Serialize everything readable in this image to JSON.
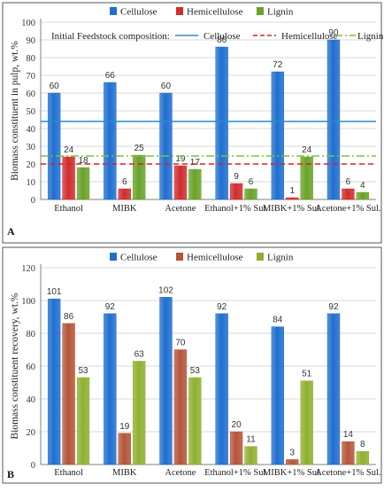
{
  "chart_data": [
    {
      "panel": "A",
      "type": "bar",
      "categories": [
        "Ethanol",
        "MIBK",
        "Acetone",
        "Ethanol+1% Sul.",
        "MIBK+1% Sul.",
        "Acetone+1% Sul."
      ],
      "series": [
        {
          "name": "Cellulose",
          "color": "#1f6fd0",
          "values": [
            60,
            66,
            60,
            86,
            72,
            90
          ]
        },
        {
          "name": "Hemicellulose",
          "color": "#d12d2d",
          "values": [
            24,
            6,
            19,
            9,
            1,
            6
          ]
        },
        {
          "name": "Lignin",
          "color": "#6aa22a",
          "values": [
            18,
            25,
            17,
            6,
            24,
            4
          ]
        }
      ],
      "reference_lines": {
        "title": "Initial Feedstock composition:",
        "lines": [
          {
            "name": "Cellulose",
            "value": 44,
            "color": "#2a8ad0",
            "style": "solid"
          },
          {
            "name": "Hemicellulose",
            "value": 20,
            "color": "#e02020",
            "style": "dashed"
          },
          {
            "name": "Lignin",
            "value": 24.5,
            "color": "#7cc23a",
            "style": "dashdot"
          }
        ]
      },
      "xlabel": "",
      "ylabel": "Biomass constituent in pulp, wt.%",
      "ylim": [
        0,
        100
      ],
      "yticks": [
        0,
        10,
        20,
        30,
        40,
        50,
        60,
        70,
        80,
        90,
        100
      ],
      "legend": "top",
      "grid": true
    },
    {
      "panel": "B",
      "type": "bar",
      "categories": [
        "Ethanol",
        "MIBK",
        "Acetone",
        "Ethanol+1% Sul.",
        "MIBK+1% Sul.",
        "Acetone+1% Sul."
      ],
      "series": [
        {
          "name": "Cellulose",
          "color": "#1f6fd0",
          "values": [
            101,
            92,
            102,
            92,
            84,
            92
          ]
        },
        {
          "name": "Hemicellulose",
          "color": "#b5553a",
          "values": [
            86,
            19,
            70,
            20,
            3,
            14
          ]
        },
        {
          "name": "Lignin",
          "color": "#8fb030",
          "values": [
            53,
            63,
            53,
            11,
            51,
            8
          ]
        }
      ],
      "xlabel": "",
      "ylabel": "Biomass constituent recovery, wt.%",
      "ylim": [
        0,
        120
      ],
      "yticks": [
        0,
        20,
        40,
        60,
        80,
        100,
        120
      ],
      "legend": "top",
      "grid": true
    }
  ]
}
